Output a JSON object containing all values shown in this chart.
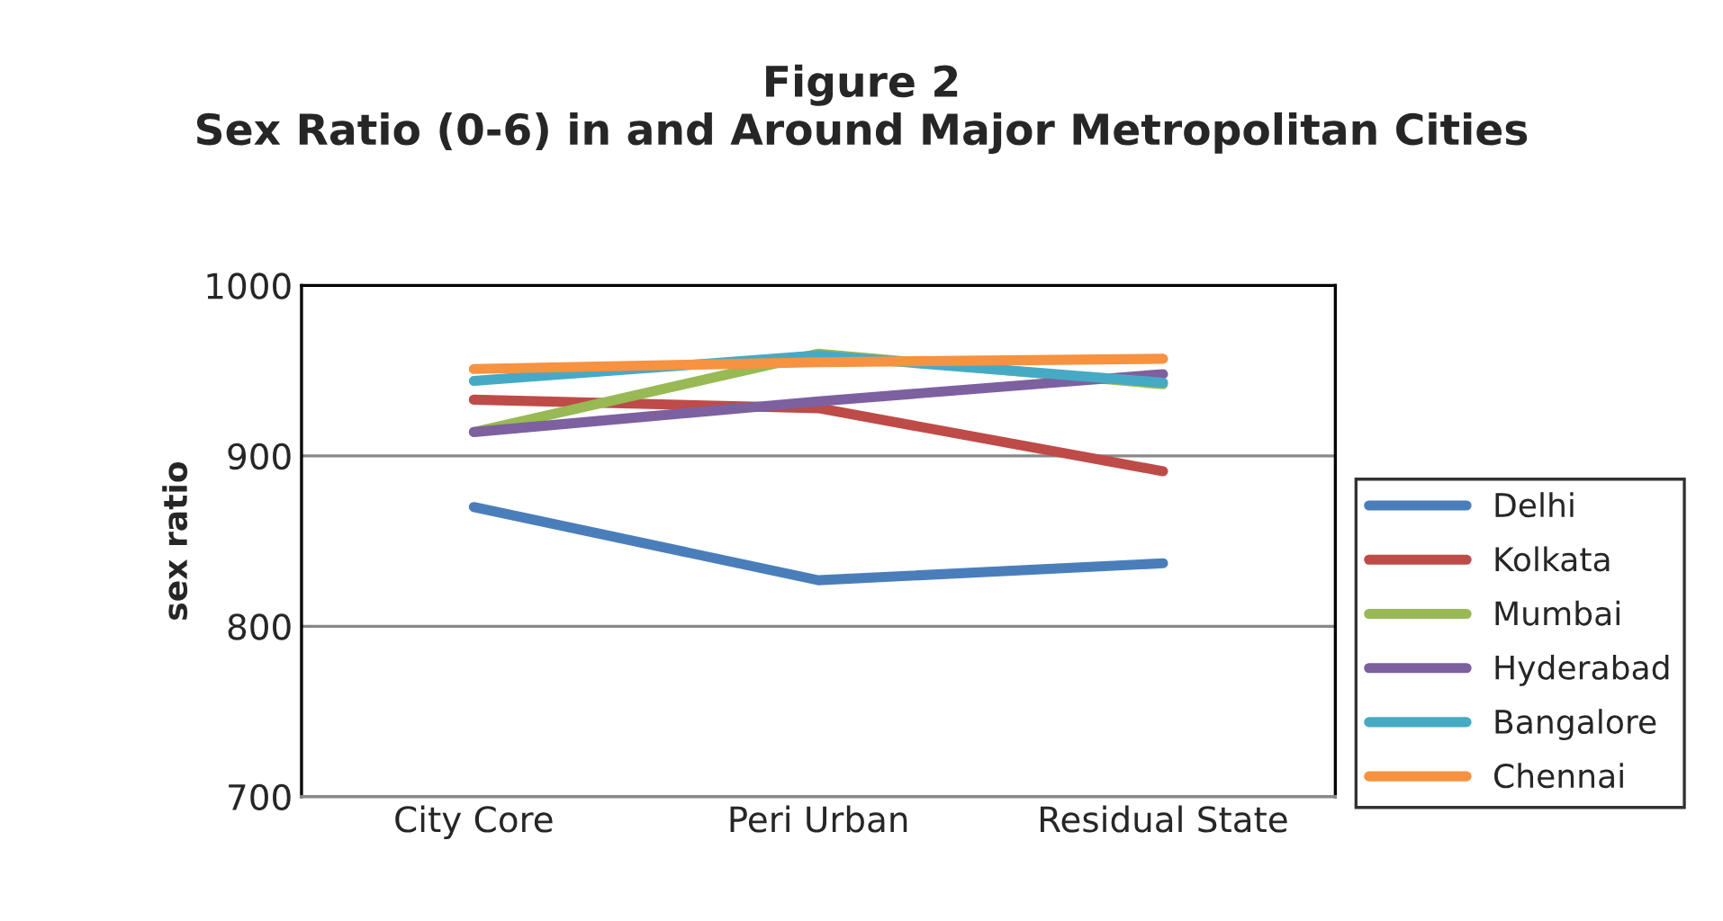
{
  "chart_data": {
    "type": "line",
    "title": "Figure 2\nSex Ratio (0-6) in and Around Major Metropolitan Cities",
    "ylabel": "sex ratio",
    "categories": [
      "City Core",
      "Peri Urban",
      "Residual State"
    ],
    "series": [
      {
        "name": "Delhi",
        "color": "#4a7ebb",
        "values": [
          870,
          827,
          837
        ]
      },
      {
        "name": "Kolkata",
        "color": "#be4b48",
        "values": [
          933,
          928,
          891
        ]
      },
      {
        "name": "Mumbai",
        "color": "#98b954",
        "values": [
          914,
          960,
          942
        ]
      },
      {
        "name": "Hyderabad",
        "color": "#7d60a0",
        "values": [
          914,
          932,
          948
        ]
      },
      {
        "name": "Bangalore",
        "color": "#46aac5",
        "values": [
          944,
          959,
          943
        ]
      },
      {
        "name": "Chennai",
        "color": "#f69240",
        "values": [
          951,
          955,
          957
        ]
      }
    ],
    "ylim": [
      700,
      1000
    ],
    "yticks": [
      700,
      800,
      900,
      1000
    ],
    "grid": "y",
    "legend": "right",
    "marker": "none",
    "line_style": "solid"
  }
}
